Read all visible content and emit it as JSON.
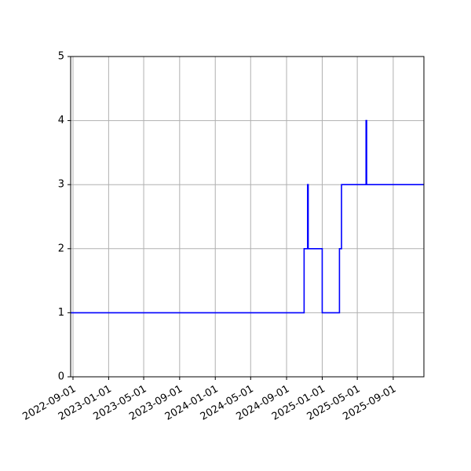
{
  "chart_data": {
    "type": "line",
    "title": "",
    "xlabel": "",
    "ylabel": "",
    "x_axis": "date",
    "xlim": [
      "2022-08-24",
      "2025-12-15"
    ],
    "ylim": [
      0,
      5
    ],
    "grid": true,
    "legend": "none",
    "x_ticks": [
      "2022-09-01",
      "2023-01-01",
      "2023-05-01",
      "2023-09-01",
      "2024-01-01",
      "2024-05-01",
      "2024-09-01",
      "2025-01-01",
      "2025-05-01",
      "2025-09-01"
    ],
    "y_ticks": [
      0,
      1,
      2,
      3,
      4,
      5
    ],
    "series": [
      {
        "color": "#0000ff",
        "x": [
          "2022-08-24",
          "2024-10-31",
          "2024-10-31",
          "2024-11-12",
          "2024-11-12",
          "2024-11-14",
          "2024-11-14",
          "2025-01-01",
          "2025-01-01",
          "2025-03-01",
          "2025-03-01",
          "2025-03-08",
          "2025-03-08",
          "2025-05-31",
          "2025-05-31",
          "2025-06-02",
          "2025-06-02",
          "2025-12-15"
        ],
        "y": [
          1,
          1,
          2,
          2,
          3,
          3,
          2,
          2,
          1,
          1,
          2,
          2,
          3,
          3,
          4,
          4,
          3,
          3
        ]
      }
    ]
  }
}
